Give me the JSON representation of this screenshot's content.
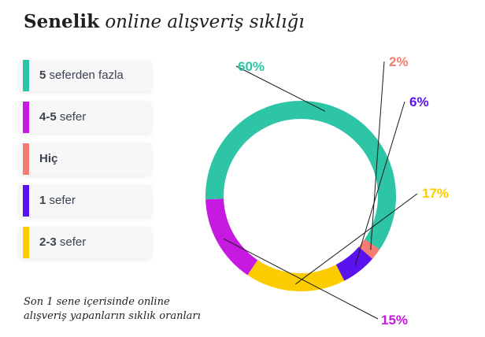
{
  "title": {
    "strong": "Senelik",
    "rest": "online alışveriş sıklığı"
  },
  "caption": {
    "line1": "Son 1 sene içerisinde online",
    "line2": "alışveriş yapanların sıklık oranları"
  },
  "legend": [
    {
      "bold": "5",
      "text": " seferden fazla",
      "color": "#2ec4a6"
    },
    {
      "bold": "4-5",
      "text": " sefer",
      "color": "#c61ae0"
    },
    {
      "bold": "Hiç",
      "text": "",
      "color": "#f47c72"
    },
    {
      "bold": "1",
      "text": " sefer",
      "color": "#5a12ee"
    },
    {
      "bold": "2-3",
      "text": " sefer",
      "color": "#fccc00"
    }
  ],
  "chart_data": {
    "type": "pie",
    "donut": true,
    "slices": [
      {
        "name": "Hiç",
        "value": 2,
        "label": "2%",
        "color": "#f47c72"
      },
      {
        "name": "1 sefer",
        "value": 6,
        "label": "6%",
        "color": "#5a12ee"
      },
      {
        "name": "2-3 sefer",
        "value": 17,
        "label": "17%",
        "color": "#fccc00"
      },
      {
        "name": "4-5 sefer",
        "value": 15,
        "label": "15%",
        "color": "#c61ae0"
      },
      {
        "name": "5 seferden fazla",
        "value": 60,
        "label": "60%",
        "color": "#2ec4a6"
      }
    ]
  }
}
